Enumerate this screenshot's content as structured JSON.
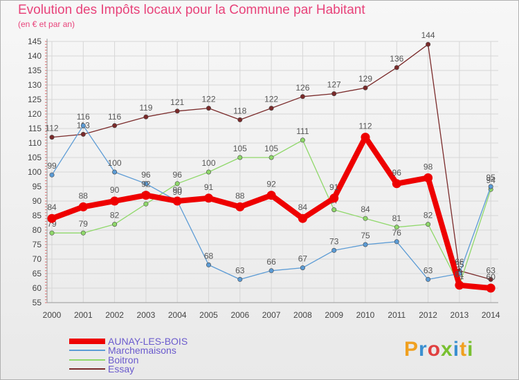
{
  "title": "Evolution des Impôts locaux pour la Commune par Habitant",
  "subtitle": "(en € et par an)",
  "logo": {
    "text": "Proxiti",
    "colors": [
      "#f0a020",
      "#3a8fd0",
      "#e04040",
      "#78c030",
      "#3a8fd0",
      "#f0a020",
      "#78c030"
    ]
  },
  "chart_data": {
    "type": "line",
    "x": [
      "2000",
      "2001",
      "2002",
      "2003",
      "2004",
      "2005",
      "2006",
      "2007",
      "2008",
      "2009",
      "2010",
      "2011",
      "2012",
      "2013",
      "2014"
    ],
    "ylim": [
      55,
      145
    ],
    "yticks": [
      55,
      60,
      65,
      70,
      75,
      80,
      85,
      90,
      95,
      100,
      105,
      110,
      115,
      120,
      125,
      130,
      135,
      140,
      145
    ],
    "grid": true,
    "legend_position": "bottom-left",
    "series": [
      {
        "name": "Essay",
        "color": "#7a2a2a",
        "values": [
          112,
          113,
          116,
          119,
          121,
          122,
          118,
          122,
          126,
          127,
          129,
          136,
          144,
          66,
          63
        ]
      },
      {
        "name": "Boitron",
        "color": "#8fd86a",
        "values": [
          79,
          79,
          82,
          89,
          96,
          100,
          105,
          105,
          111,
          87,
          84,
          81,
          82,
          61,
          94
        ]
      },
      {
        "name": "Marchemaisons",
        "color": "#5b9bd5",
        "values": [
          99,
          116,
          100,
          96,
          90,
          68,
          63,
          66,
          67,
          73,
          75,
          76,
          63,
          65,
          95
        ]
      },
      {
        "name": "AUNAY-LES-BOIS",
        "color": "#ee0000",
        "values": [
          84,
          88,
          90,
          92,
          90,
          91,
          88,
          92,
          84,
          91,
          112,
          96,
          98,
          61,
          60
        ]
      }
    ],
    "legend_order": [
      "AUNAY-LES-BOIS",
      "Marchemaisons",
      "Boitron",
      "Essay"
    ]
  }
}
